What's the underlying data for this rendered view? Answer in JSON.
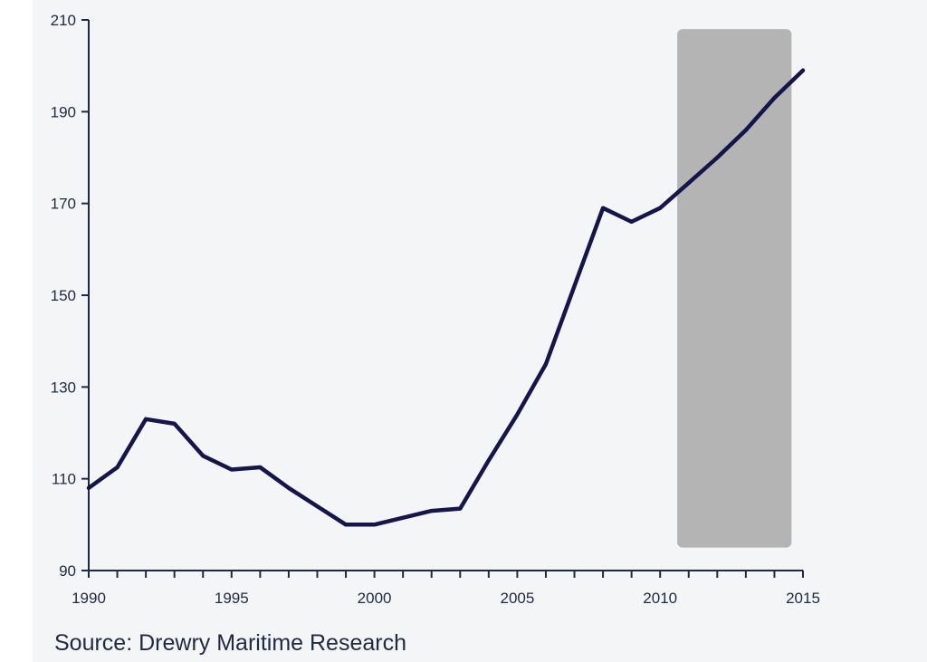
{
  "chart_data": {
    "type": "line",
    "title": "",
    "xlabel": "",
    "ylabel": "",
    "xlim": [
      1990,
      2015
    ],
    "ylim": [
      90,
      210
    ],
    "x_ticks": [
      1990,
      1995,
      2000,
      2005,
      2010,
      2015
    ],
    "y_ticks": [
      90,
      110,
      130,
      150,
      170,
      190,
      210
    ],
    "grid": false,
    "legend": "none",
    "forecast_band": {
      "x_start": 2010.6,
      "x_end": 2014.6,
      "y_start": 95,
      "y_end": 208,
      "color": "#b4b4b4"
    },
    "series": [
      {
        "color": "#14154a",
        "x": [
          1990,
          1991,
          1992,
          1993,
          1994,
          1995,
          1996,
          1997,
          1998,
          1999,
          2000,
          2001,
          2002,
          2003,
          2004,
          2005,
          2006,
          2007,
          2008,
          2009,
          2010,
          2011,
          2012,
          2013,
          2014,
          2015
        ],
        "y": [
          108,
          112.5,
          123,
          122,
          115,
          112,
          112.5,
          108,
          104,
          100,
          100,
          101.5,
          103,
          103.5,
          114,
          124,
          135,
          152,
          169,
          166,
          169,
          174.5,
          180,
          186,
          193,
          199
        ]
      }
    ]
  },
  "source": "Source: Drewry Maritime Research",
  "colors": {
    "plot_bg": "#f4f5f6",
    "axis": "#1e2a44"
  }
}
